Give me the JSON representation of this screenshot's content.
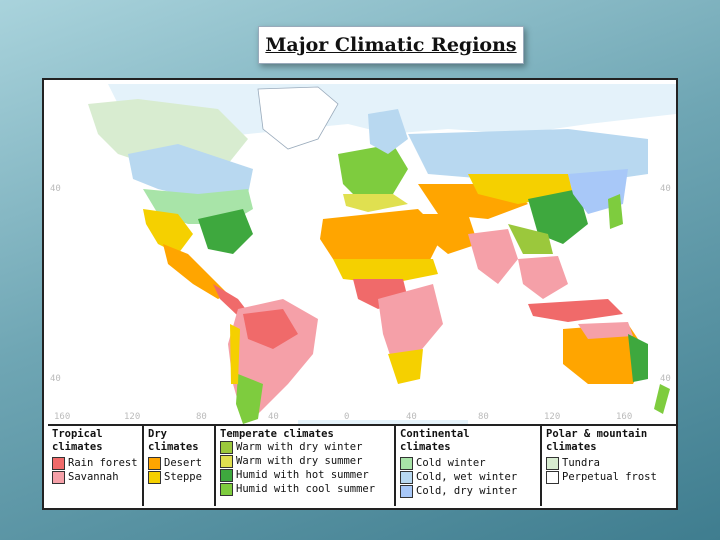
{
  "title": "Major Climatic Regions",
  "map": {
    "lat_labels_left": [
      "40",
      "40"
    ],
    "lat_labels_right": [
      "40",
      "40"
    ],
    "lon_labels": [
      "160",
      "120",
      "80",
      "40",
      "0",
      "40",
      "80",
      "120",
      "160"
    ],
    "colors": {
      "rain_forest": "#f06a6a",
      "savannah": "#f5a0a8",
      "desert": "#ffa500",
      "steppe": "#f5d000",
      "warm_dry_winter": "#9bc83c",
      "warm_dry_summer": "#e0e050",
      "humid_hot_summer": "#3ea83e",
      "humid_cool_summer": "#7ecc3e",
      "cold_winter": "#a8e4a8",
      "cold_wet_winter": "#b8d8f0",
      "cold_dry_winter": "#a8c8f8",
      "tundra": "#d8ecd0",
      "perpetual_frost": "#ffffff"
    }
  },
  "legend": {
    "tropical": {
      "title": [
        "Tropical",
        "climates"
      ],
      "items": [
        {
          "label": "Rain forest",
          "color": "#f06a6a"
        },
        {
          "label": "Savannah",
          "color": "#f5a0a8"
        }
      ]
    },
    "dry": {
      "title": [
        "Dry",
        "climates"
      ],
      "items": [
        {
          "label": "Desert",
          "color": "#ffa500"
        },
        {
          "label": "Steppe",
          "color": "#f5d000"
        }
      ]
    },
    "temperate": {
      "title": [
        "Temperate climates"
      ],
      "items": [
        {
          "label": "Warm with dry winter",
          "color": "#9bc83c"
        },
        {
          "label": "Warm with dry summer",
          "color": "#e0e050"
        },
        {
          "label": "Humid with hot summer",
          "color": "#3ea83e"
        },
        {
          "label": "Humid with cool summer",
          "color": "#7ecc3e"
        }
      ]
    },
    "continental": {
      "title": [
        "Continental",
        "climates"
      ],
      "items": [
        {
          "label": "Cold winter",
          "color": "#a8e4a8"
        },
        {
          "label": "Cold, wet winter",
          "color": "#b8d8f0"
        },
        {
          "label": "Cold, dry winter",
          "color": "#a8c8f8"
        }
      ]
    },
    "polar": {
      "title": [
        "Polar & mountain",
        "climates"
      ],
      "items": [
        {
          "label": "Tundra",
          "color": "#d8ecd0"
        },
        {
          "label": "Perpetual frost",
          "color": "#ffffff"
        }
      ]
    }
  }
}
